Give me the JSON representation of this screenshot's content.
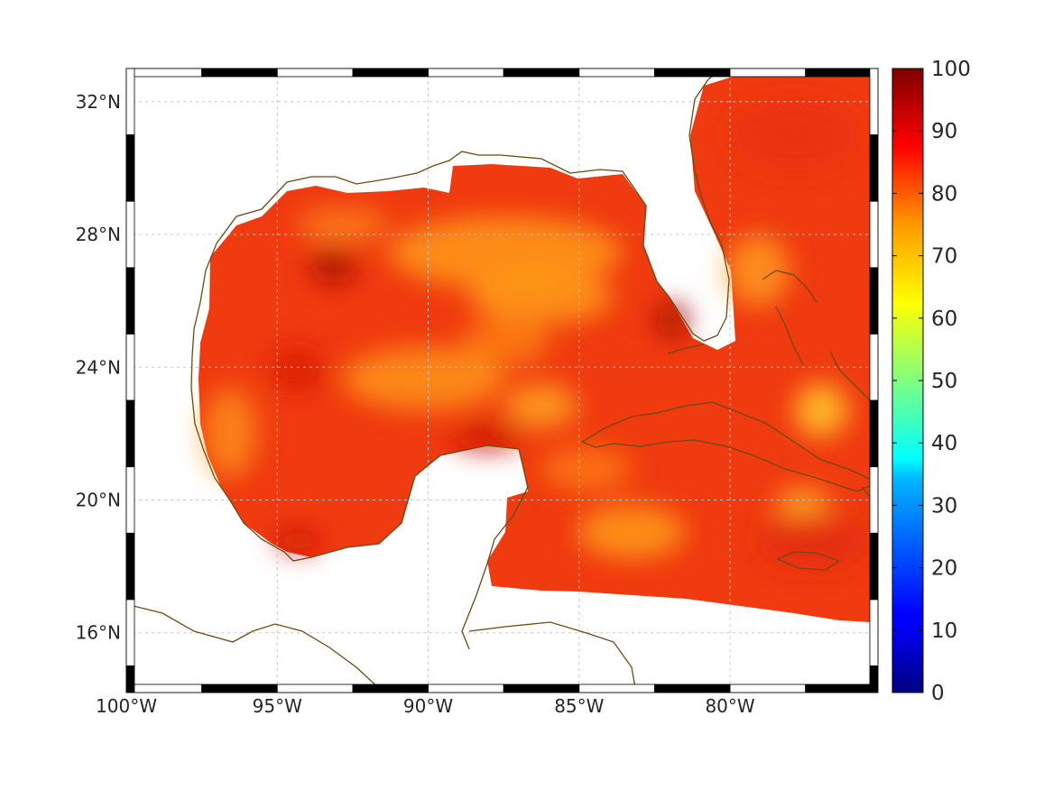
{
  "map": {
    "projection": "equirectangular",
    "lon_range": [
      -100,
      -75.1
    ],
    "lat_range": [
      14.2,
      33
    ],
    "x_ticks": [
      {
        "lon": -100,
        "label": "100°W"
      },
      {
        "lon": -95,
        "label": "95°W"
      },
      {
        "lon": -90,
        "label": "90°W"
      },
      {
        "lon": -85,
        "label": "85°W"
      },
      {
        "lon": -80,
        "label": "80°W"
      }
    ],
    "y_ticks": [
      {
        "lat": 32,
        "label": "32°N"
      },
      {
        "lat": 28,
        "label": "28°N"
      },
      {
        "lat": 24,
        "label": "24°N"
      },
      {
        "lat": 20,
        "label": "20°N"
      },
      {
        "lat": 16,
        "label": "16°N"
      }
    ],
    "grid": true,
    "coastline_color": "#6b4b12",
    "field_description_colors": "values mostly 70–95 over the Gulf of Mexico and western Caribbean"
  },
  "colorbar": {
    "colormap": "jet",
    "min": 0,
    "max": 100,
    "ticks": [
      "0",
      "10",
      "20",
      "30",
      "40",
      "50",
      "60",
      "70",
      "80",
      "90",
      "100"
    ]
  }
}
